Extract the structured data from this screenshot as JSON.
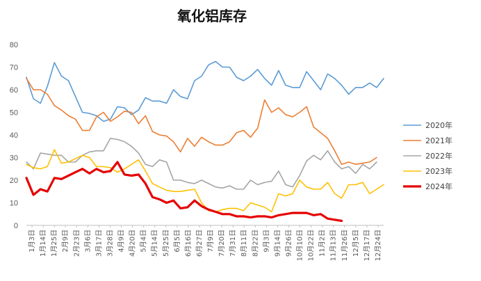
{
  "chart_data": {
    "type": "line",
    "title": "氧化铝库存",
    "xlabel": "",
    "ylabel": "",
    "ylim": [
      0,
      80
    ],
    "yticks": [
      0,
      10,
      20,
      30,
      40,
      50,
      60,
      70,
      80
    ],
    "grid": false,
    "legend": "right",
    "x_tick_labels": [
      "1月3日",
      "1月14日",
      "1月25日",
      "2月9日",
      "2月23日",
      "3月6日",
      "3月17日",
      "3月28日",
      "4月9日",
      "4月20日",
      "5月4日",
      "5月14日",
      "5月25日",
      "6月5日",
      "6月16日",
      "6月27日",
      "7月9日",
      "7月20日",
      "7月31日",
      "8月11日",
      "8月22日",
      "9月3日",
      "9月14日",
      "9月26日",
      "10月10日",
      "10月22日",
      "11月2日",
      "11月13日",
      "11月26日",
      "12月5日",
      "12月17日",
      "12月24日"
    ],
    "series": [
      {
        "name": "2020年",
        "color": "#5B9BD5",
        "width": 1.6,
        "values": [
          65.5,
          56,
          54,
          61.5,
          72,
          66,
          64,
          57,
          50,
          49.5,
          48.5,
          46,
          47,
          52.5,
          52,
          49,
          51,
          56.5,
          55,
          55,
          54,
          60,
          57,
          56,
          64,
          66,
          71,
          72.5,
          70,
          70,
          65.5,
          64,
          66,
          69,
          65,
          62,
          68.5,
          62,
          61,
          61,
          68,
          64,
          60,
          67,
          65,
          62,
          58,
          61,
          61,
          63,
          61,
          65
        ]
      },
      {
        "name": "2021年",
        "color": "#ED7D31",
        "width": 1.6,
        "values": [
          65,
          60,
          60,
          58,
          53,
          51,
          48.5,
          47,
          42,
          42,
          48,
          50,
          46,
          48,
          50.5,
          50,
          45,
          48.5,
          41.5,
          40,
          39.5,
          37,
          32.5,
          38.5,
          35,
          39,
          37,
          35.5,
          35.5,
          37,
          41,
          42,
          39,
          43,
          55.5,
          50,
          52,
          49,
          48,
          50,
          52.5,
          43.5,
          41,
          38.5,
          33,
          27,
          28,
          27,
          27.5,
          28,
          30
        ]
      },
      {
        "name": "2022年",
        "color": "#A5A5A5",
        "width": 1.6,
        "values": [
          28,
          25,
          32,
          31.5,
          31,
          31,
          28,
          28,
          31,
          32.5,
          33,
          33,
          38.5,
          38,
          37,
          35,
          32,
          27,
          26,
          29,
          28,
          20,
          20,
          19,
          18.5,
          20,
          18.5,
          17,
          16.5,
          17.5,
          16,
          16,
          20,
          18,
          19,
          19.5,
          24,
          18,
          17,
          22,
          28.5,
          31,
          29,
          33,
          28,
          25,
          26,
          23,
          27,
          25,
          28
        ]
      },
      {
        "name": "2023年",
        "color": "#FFC000",
        "width": 1.6,
        "values": [
          27,
          25.5,
          25,
          26,
          33.5,
          27.5,
          28,
          29.5,
          31,
          30,
          26,
          26,
          25.5,
          23.5,
          25,
          27,
          29,
          24,
          18.5,
          17,
          15.5,
          15,
          15,
          15.5,
          16,
          10,
          6.5,
          6,
          7,
          7.5,
          7.5,
          6.5,
          10,
          9,
          8,
          6,
          14,
          13,
          14,
          20,
          17,
          16,
          16,
          19,
          14,
          12,
          18,
          18,
          19,
          14,
          16,
          18
        ]
      },
      {
        "name": "2024年",
        "color": "#E50000",
        "width": 3.2,
        "values": [
          21,
          13.5,
          16,
          15,
          21,
          20.5,
          22,
          23.5,
          25,
          23,
          25,
          23.5,
          24,
          28,
          22.5,
          22,
          22.5,
          18.5,
          12.5,
          11.5,
          10,
          11,
          7.5,
          8,
          11,
          8.5,
          7,
          6,
          5,
          5,
          4,
          4,
          3.5,
          4,
          4,
          3.5,
          4.5,
          5,
          5.5,
          5.5,
          5.5,
          4.5,
          5,
          3,
          2.5,
          2
        ]
      }
    ]
  }
}
